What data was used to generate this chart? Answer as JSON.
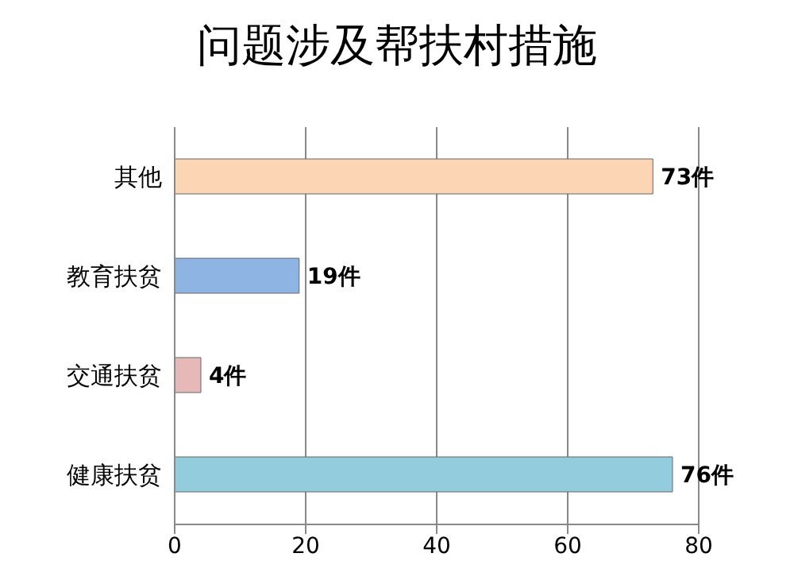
{
  "chart_data": {
    "type": "bar",
    "orientation": "horizontal",
    "title": "问题涉及帮扶村措施",
    "categories": [
      "其他",
      "教育扶贫",
      "交通扶贫",
      "健康扶贫"
    ],
    "values": [
      73,
      19,
      4,
      76
    ],
    "colors": [
      "#fcd5b5",
      "#8eb4e3",
      "#e6b9b8",
      "#93cddd"
    ],
    "value_labels": [
      "73件",
      "19件",
      "4件",
      "76件"
    ],
    "xlim": [
      0,
      80
    ],
    "xticks": [
      0,
      20,
      40,
      60,
      80
    ],
    "grid": "x"
  }
}
